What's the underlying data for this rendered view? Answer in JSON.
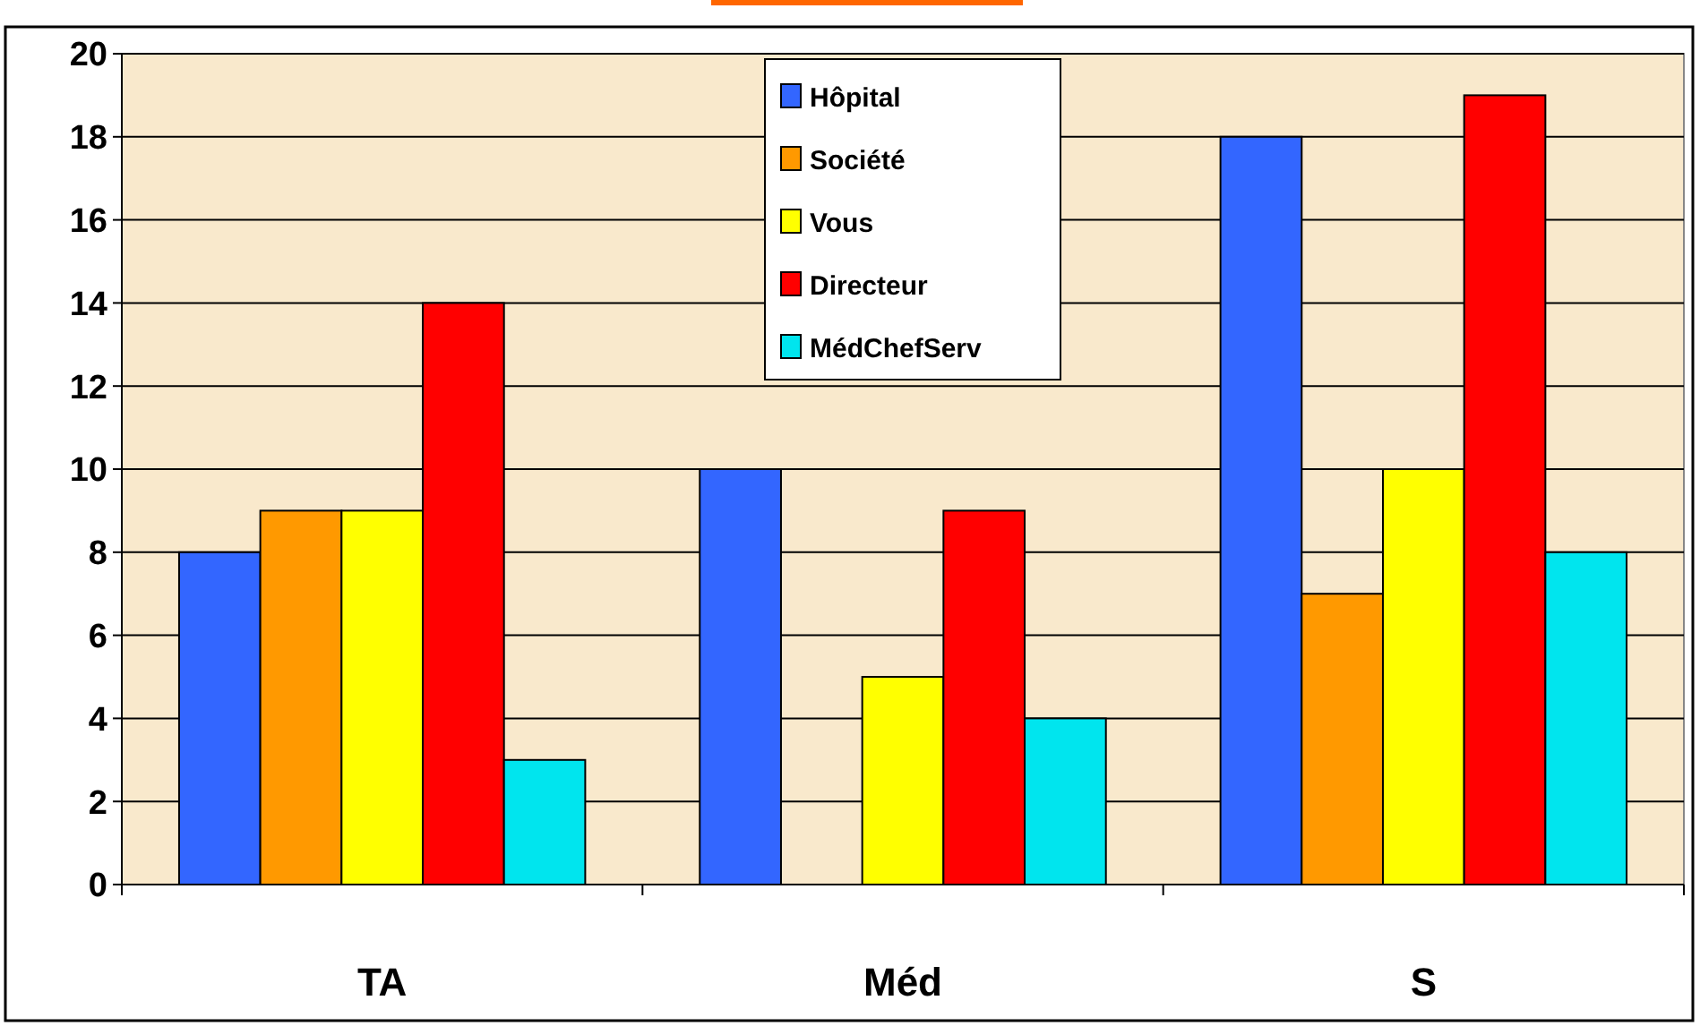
{
  "chart_data": {
    "type": "bar",
    "categories": [
      "TA",
      "Méd",
      "S"
    ],
    "series": [
      {
        "name": "Hôpital",
        "color": "#3366ff",
        "values": [
          8,
          10,
          18
        ]
      },
      {
        "name": "Société",
        "color": "#ff9900",
        "values": [
          9,
          0,
          7
        ]
      },
      {
        "name": "Vous",
        "color": "#ffff00",
        "values": [
          9,
          5,
          10
        ]
      },
      {
        "name": "Directeur",
        "color": "#ff0000",
        "values": [
          14,
          9,
          19
        ]
      },
      {
        "name": "MédChefServ",
        "color": "#00e5ee",
        "values": [
          3,
          4,
          8
        ]
      }
    ],
    "ylim": [
      0,
      20
    ],
    "yticks": [
      0,
      2,
      4,
      6,
      8,
      10,
      12,
      14,
      16,
      18,
      20
    ],
    "grid": "y",
    "legend": "top"
  }
}
